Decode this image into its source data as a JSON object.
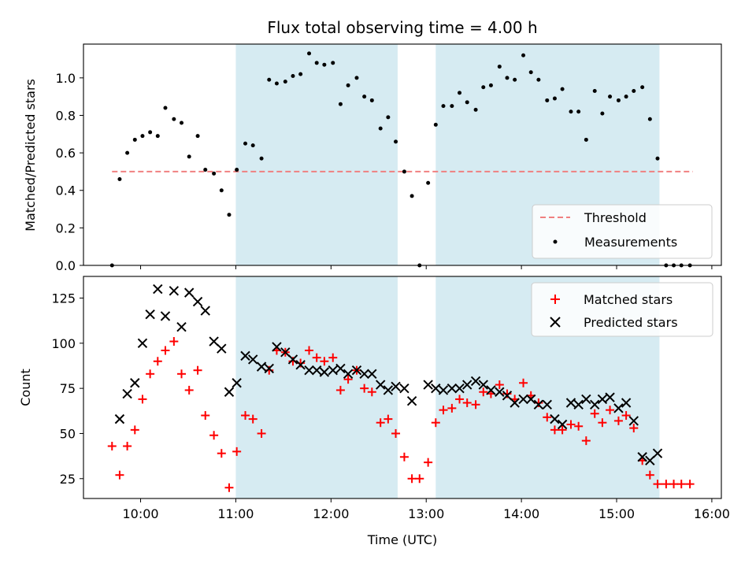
{
  "chart_data": {
    "type": "scatter",
    "title": "Flux total observing time = 4.00 h",
    "xlabel": "Time (UTC)",
    "xlim": [
      9.4,
      16.1
    ],
    "x_ticks": [
      10,
      11,
      12,
      13,
      14,
      15,
      16
    ],
    "x_tick_labels": [
      "10:00",
      "11:00",
      "12:00",
      "13:00",
      "14:00",
      "15:00",
      "16:00"
    ],
    "colors": {
      "shade": "#add8e6",
      "threshold": "#f08080",
      "measurements": "#000000",
      "matched": "#ff0000",
      "predicted": "#000000"
    },
    "shaded_spans": [
      [
        11.0,
        12.7
      ],
      [
        13.1,
        15.45
      ]
    ],
    "top_panel": {
      "ylabel": "Matched/Predicted stars",
      "ylim": [
        0,
        1.18
      ],
      "y_ticks": [
        0,
        0.2,
        0.4,
        0.6,
        0.8,
        1.0
      ],
      "y_tick_labels": [
        "0.0",
        "0.2",
        "0.4",
        "0.6",
        "0.8",
        "1.0"
      ],
      "legend_position": "lower-right",
      "threshold": {
        "name": "Threshold",
        "value": 0.5,
        "x_range": [
          9.7,
          15.8
        ]
      },
      "measurements": {
        "name": "Measurements",
        "points": [
          [
            9.7,
            0.0
          ],
          [
            9.78,
            0.46
          ],
          [
            9.86,
            0.6
          ],
          [
            9.94,
            0.67
          ],
          [
            10.02,
            0.69
          ],
          [
            10.1,
            0.71
          ],
          [
            10.18,
            0.69
          ],
          [
            10.26,
            0.84
          ],
          [
            10.35,
            0.78
          ],
          [
            10.43,
            0.76
          ],
          [
            10.51,
            0.58
          ],
          [
            10.6,
            0.69
          ],
          [
            10.68,
            0.51
          ],
          [
            10.77,
            0.49
          ],
          [
            10.85,
            0.4
          ],
          [
            10.93,
            0.27
          ],
          [
            11.01,
            0.51
          ],
          [
            11.1,
            0.65
          ],
          [
            11.18,
            0.64
          ],
          [
            11.27,
            0.57
          ],
          [
            11.35,
            0.99
          ],
          [
            11.43,
            0.97
          ],
          [
            11.52,
            0.98
          ],
          [
            11.6,
            1.01
          ],
          [
            11.68,
            1.02
          ],
          [
            11.77,
            1.13
          ],
          [
            11.85,
            1.08
          ],
          [
            11.93,
            1.07
          ],
          [
            12.02,
            1.08
          ],
          [
            12.1,
            0.86
          ],
          [
            12.18,
            0.96
          ],
          [
            12.27,
            1.0
          ],
          [
            12.35,
            0.9
          ],
          [
            12.43,
            0.88
          ],
          [
            12.52,
            0.73
          ],
          [
            12.6,
            0.79
          ],
          [
            12.68,
            0.66
          ],
          [
            12.77,
            0.5
          ],
          [
            12.85,
            0.37
          ],
          [
            12.93,
            0.0
          ],
          [
            13.02,
            0.44
          ],
          [
            13.1,
            0.75
          ],
          [
            13.18,
            0.85
          ],
          [
            13.27,
            0.85
          ],
          [
            13.35,
            0.92
          ],
          [
            13.43,
            0.87
          ],
          [
            13.52,
            0.83
          ],
          [
            13.6,
            0.95
          ],
          [
            13.68,
            0.96
          ],
          [
            13.77,
            1.06
          ],
          [
            13.85,
            1.0
          ],
          [
            13.93,
            0.99
          ],
          [
            14.02,
            1.12
          ],
          [
            14.1,
            1.03
          ],
          [
            14.18,
            0.99
          ],
          [
            14.27,
            0.88
          ],
          [
            14.35,
            0.89
          ],
          [
            14.43,
            0.94
          ],
          [
            14.52,
            0.82
          ],
          [
            14.6,
            0.82
          ],
          [
            14.68,
            0.67
          ],
          [
            14.77,
            0.93
          ],
          [
            14.85,
            0.81
          ],
          [
            14.93,
            0.9
          ],
          [
            15.02,
            0.88
          ],
          [
            15.1,
            0.9
          ],
          [
            15.18,
            0.93
          ],
          [
            15.27,
            0.95
          ],
          [
            15.35,
            0.78
          ],
          [
            15.43,
            0.57
          ],
          [
            15.52,
            0.0
          ],
          [
            15.6,
            0.0
          ],
          [
            15.68,
            0.0
          ],
          [
            15.77,
            0.0
          ]
        ]
      }
    },
    "bottom_panel": {
      "ylabel": "Count",
      "ylim": [
        14,
        137
      ],
      "y_ticks": [
        25,
        50,
        75,
        100,
        125
      ],
      "y_tick_labels": [
        "25",
        "50",
        "75",
        "100",
        "125"
      ],
      "legend_position": "upper-right",
      "series": [
        {
          "name": "Matched stars",
          "marker": "plus",
          "points": [
            [
              9.7,
              43
            ],
            [
              9.78,
              27
            ],
            [
              9.86,
              43
            ],
            [
              9.94,
              52
            ],
            [
              10.02,
              69
            ],
            [
              10.1,
              83
            ],
            [
              10.18,
              90
            ],
            [
              10.26,
              96
            ],
            [
              10.35,
              101
            ],
            [
              10.43,
              83
            ],
            [
              10.51,
              74
            ],
            [
              10.6,
              85
            ],
            [
              10.68,
              60
            ],
            [
              10.77,
              49
            ],
            [
              10.85,
              39
            ],
            [
              10.93,
              20
            ],
            [
              11.01,
              40
            ],
            [
              11.1,
              60
            ],
            [
              11.18,
              58
            ],
            [
              11.27,
              50
            ],
            [
              11.35,
              85
            ],
            [
              11.43,
              96
            ],
            [
              11.52,
              95
            ],
            [
              11.6,
              90
            ],
            [
              11.68,
              89
            ],
            [
              11.77,
              96
            ],
            [
              11.85,
              92
            ],
            [
              11.93,
              90
            ],
            [
              12.02,
              92
            ],
            [
              12.1,
              74
            ],
            [
              12.18,
              80
            ],
            [
              12.27,
              85
            ],
            [
              12.35,
              75
            ],
            [
              12.43,
              73
            ],
            [
              12.52,
              56
            ],
            [
              12.6,
              58
            ],
            [
              12.68,
              50
            ],
            [
              12.77,
              37
            ],
            [
              12.85,
              25
            ],
            [
              12.93,
              25
            ],
            [
              13.02,
              34
            ],
            [
              13.1,
              56
            ],
            [
              13.18,
              63
            ],
            [
              13.27,
              64
            ],
            [
              13.35,
              69
            ],
            [
              13.43,
              67
            ],
            [
              13.52,
              66
            ],
            [
              13.6,
              73
            ],
            [
              13.68,
              72
            ],
            [
              13.77,
              77
            ],
            [
              13.85,
              72
            ],
            [
              13.93,
              69
            ],
            [
              14.02,
              78
            ],
            [
              14.1,
              71
            ],
            [
              14.18,
              67
            ],
            [
              14.27,
              59
            ],
            [
              14.35,
              52
            ],
            [
              14.43,
              52
            ],
            [
              14.52,
              55
            ],
            [
              14.6,
              54
            ],
            [
              14.68,
              46
            ],
            [
              14.77,
              61
            ],
            [
              14.85,
              56
            ],
            [
              14.93,
              63
            ],
            [
              15.02,
              57
            ],
            [
              15.1,
              60
            ],
            [
              15.18,
              53
            ],
            [
              15.27,
              35
            ],
            [
              15.35,
              27
            ],
            [
              15.43,
              22
            ],
            [
              15.52,
              22
            ],
            [
              15.6,
              22
            ],
            [
              15.68,
              22
            ],
            [
              15.77,
              22
            ]
          ]
        },
        {
          "name": "Predicted stars",
          "marker": "x",
          "points": [
            [
              9.78,
              58
            ],
            [
              9.86,
              72
            ],
            [
              9.94,
              78
            ],
            [
              10.02,
              100
            ],
            [
              10.1,
              116
            ],
            [
              10.18,
              130
            ],
            [
              10.26,
              115
            ],
            [
              10.35,
              129
            ],
            [
              10.43,
              109
            ],
            [
              10.51,
              128
            ],
            [
              10.6,
              123
            ],
            [
              10.68,
              118
            ],
            [
              10.77,
              101
            ],
            [
              10.85,
              97
            ],
            [
              10.93,
              73
            ],
            [
              11.01,
              78
            ],
            [
              11.1,
              93
            ],
            [
              11.18,
              91
            ],
            [
              11.27,
              87
            ],
            [
              11.35,
              86
            ],
            [
              11.43,
              98
            ],
            [
              11.52,
              95
            ],
            [
              11.6,
              91
            ],
            [
              11.68,
              88
            ],
            [
              11.77,
              85
            ],
            [
              11.85,
              85
            ],
            [
              11.93,
              84
            ],
            [
              12.02,
              85
            ],
            [
              12.1,
              86
            ],
            [
              12.18,
              83
            ],
            [
              12.27,
              85
            ],
            [
              12.35,
              83
            ],
            [
              12.43,
              83
            ],
            [
              12.52,
              77
            ],
            [
              12.6,
              74
            ],
            [
              12.68,
              76
            ],
            [
              12.77,
              75
            ],
            [
              12.85,
              68
            ],
            [
              13.02,
              77
            ],
            [
              13.1,
              75
            ],
            [
              13.18,
              74
            ],
            [
              13.27,
              75
            ],
            [
              13.35,
              75
            ],
            [
              13.43,
              77
            ],
            [
              13.52,
              79
            ],
            [
              13.6,
              77
            ],
            [
              13.68,
              74
            ],
            [
              13.77,
              73
            ],
            [
              13.85,
              71
            ],
            [
              13.93,
              67
            ],
            [
              14.02,
              69
            ],
            [
              14.1,
              69
            ],
            [
              14.18,
              66
            ],
            [
              14.27,
              66
            ],
            [
              14.35,
              58
            ],
            [
              14.43,
              55
            ],
            [
              14.52,
              67
            ],
            [
              14.6,
              66
            ],
            [
              14.68,
              69
            ],
            [
              14.77,
              66
            ],
            [
              14.85,
              69
            ],
            [
              14.93,
              70
            ],
            [
              15.02,
              64
            ],
            [
              15.1,
              67
            ],
            [
              15.18,
              57
            ],
            [
              15.27,
              37
            ],
            [
              15.35,
              35
            ],
            [
              15.43,
              39
            ]
          ]
        }
      ]
    }
  }
}
